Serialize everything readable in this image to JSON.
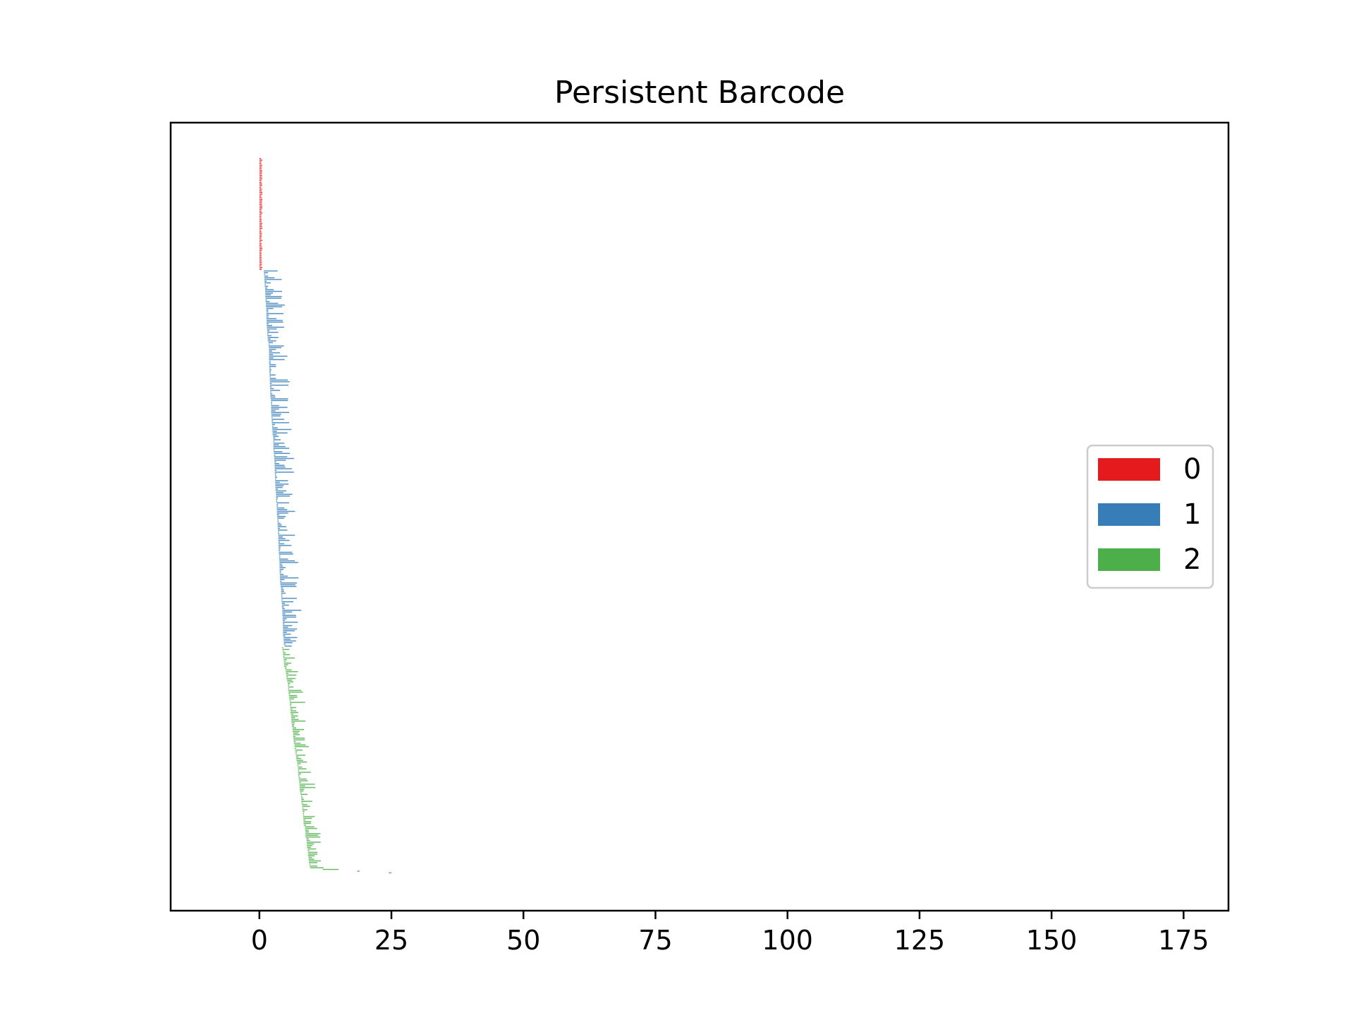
{
  "chart_data": {
    "type": "barcode",
    "title": "Persistent Barcode",
    "xlabel": "",
    "ylabel": "",
    "xlim": [
      -16.8,
      183.5
    ],
    "xticks": [
      0,
      25,
      50,
      75,
      100,
      125,
      150,
      175
    ],
    "yticks_visible": false,
    "grid": false,
    "legend_position": "center-right",
    "series": [
      {
        "name": "0",
        "color": "#e41a1c",
        "bars": {
          "count": 66,
          "birth": [
            0,
            0
          ],
          "death": [
            0.3,
            0.6
          ]
        }
      },
      {
        "name": "1",
        "color": "#377eb8",
        "bars": {
          "count": 220,
          "birth": [
            0.9,
            4.6
          ],
          "death_extra": [
            0.2,
            3.8
          ]
        }
      },
      {
        "name": "2",
        "color": "#4daf4a",
        "bars": {
          "count": 130,
          "birth": [
            4.4,
            9.5
          ],
          "death_extra": [
            0.2,
            3.0
          ]
        }
      }
    ],
    "outliers": [
      {
        "dimension": "1",
        "birth": 2.0,
        "death": 5.5
      },
      {
        "dimension": "2",
        "birth": 12.0,
        "death": 15.0
      },
      {
        "dimension": "2",
        "birth": 18.5,
        "death": 19.0
      },
      {
        "dimension": "2",
        "birth": 24.5,
        "death": 25.0
      }
    ]
  }
}
